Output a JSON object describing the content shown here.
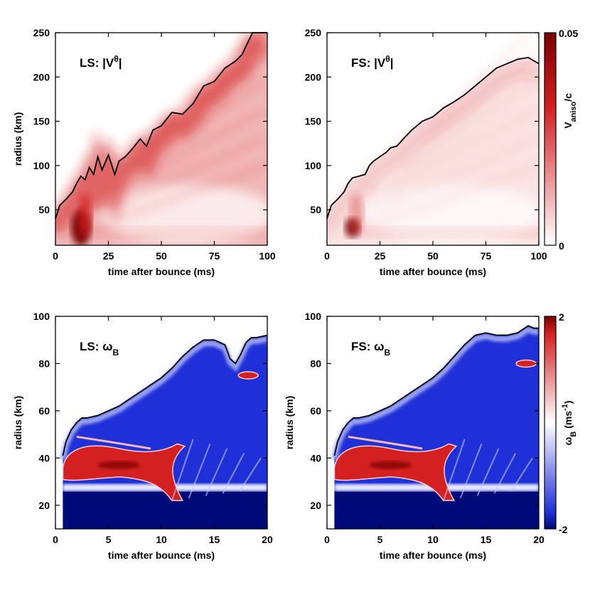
{
  "colors": {
    "red": "#d42020",
    "dark_red": "#7a0000",
    "white": "#ffffff",
    "blue": "#2030d8",
    "dark_blue": "#000a78",
    "shock_line": "#000000"
  },
  "chart_data": [
    {
      "type": "heatmap",
      "panel": "top-left",
      "title_prefix": "LS: |V",
      "title_sup": "θ",
      "title_suffix": "|",
      "xlabel": "time after bounce (ms)",
      "ylabel": "radius (km)",
      "xlim": [
        0,
        100
      ],
      "ylim": [
        10,
        250
      ],
      "xticks": [
        0,
        25,
        50,
        75,
        100
      ],
      "yticks": [
        50,
        100,
        150,
        200,
        250
      ],
      "colormap": "white-red",
      "shock_radius": {
        "x": [
          0,
          2,
          5,
          8,
          10,
          12,
          14,
          16,
          18,
          20,
          22,
          25,
          28,
          30,
          33,
          36,
          40,
          43,
          46,
          50,
          55,
          60,
          65,
          70,
          75,
          80,
          85,
          88,
          90,
          93,
          95,
          100
        ],
        "y": [
          40,
          55,
          62,
          70,
          80,
          88,
          84,
          98,
          90,
          110,
          95,
          112,
          90,
          105,
          110,
          118,
          130,
          122,
          140,
          145,
          160,
          158,
          170,
          190,
          195,
          210,
          218,
          225,
          235,
          250,
          250,
          250
        ]
      }
    },
    {
      "type": "heatmap",
      "panel": "top-right",
      "title_prefix": "FS: |V",
      "title_sup": "θ",
      "title_suffix": "|",
      "xlabel": "time after bounce (ms)",
      "ylabel": "",
      "xlim": [
        0,
        100
      ],
      "ylim": [
        10,
        250
      ],
      "xticks": [
        0,
        25,
        50,
        75,
        100
      ],
      "yticks": [
        50,
        100,
        150,
        200,
        250
      ],
      "colormap": "white-red",
      "shock_radius": {
        "x": [
          0,
          2,
          5,
          8,
          10,
          12,
          15,
          18,
          20,
          22,
          25,
          28,
          30,
          33,
          36,
          40,
          45,
          50,
          55,
          60,
          65,
          70,
          75,
          80,
          85,
          90,
          95,
          100
        ],
        "y": [
          40,
          55,
          62,
          70,
          80,
          86,
          88,
          90,
          100,
          105,
          110,
          115,
          120,
          122,
          130,
          140,
          150,
          155,
          165,
          172,
          180,
          190,
          200,
          210,
          215,
          220,
          222,
          215
        ]
      }
    },
    {
      "type": "heatmap",
      "panel": "bottom-left",
      "title_prefix": "LS: ω",
      "title_sub": "B",
      "xlabel": "time after bounce (ms)",
      "ylabel": "radius (km)",
      "xlim": [
        0,
        20
      ],
      "ylim": [
        10,
        100
      ],
      "xticks": [
        0,
        5,
        10,
        15,
        20
      ],
      "yticks": [
        20,
        40,
        60,
        80,
        100
      ],
      "colormap": "blue-white-red",
      "shock_radius": {
        "x": [
          0.7,
          1,
          1.5,
          2,
          2.5,
          3,
          4,
          5,
          6,
          7,
          8,
          9,
          10,
          11,
          12,
          13,
          14,
          15,
          16,
          16.5,
          17,
          17.5,
          18,
          18.5,
          19,
          20
        ],
        "y": [
          41,
          47,
          52,
          55,
          57,
          57,
          58,
          60,
          62,
          65,
          68,
          71,
          74,
          78,
          83,
          87,
          90,
          90,
          88,
          82,
          80,
          84,
          89,
          91,
          91,
          92
        ]
      }
    },
    {
      "type": "heatmap",
      "panel": "bottom-right",
      "title_prefix": "FS: ω",
      "title_sub": "B",
      "xlabel": "time after bounce (ms)",
      "ylabel": "radius (km)",
      "xlim": [
        0,
        20
      ],
      "ylim": [
        10,
        100
      ],
      "xticks": [
        0,
        5,
        10,
        15,
        20
      ],
      "yticks": [
        20,
        40,
        60,
        80,
        100
      ],
      "colormap": "blue-white-red",
      "shock_radius": {
        "x": [
          0.7,
          1,
          1.5,
          2,
          2.5,
          3,
          4,
          5,
          6,
          7,
          8,
          9,
          10,
          11,
          12,
          13,
          14,
          15,
          16,
          17,
          18,
          19,
          19.5,
          20
        ],
        "y": [
          41,
          47,
          52,
          55,
          57,
          57,
          58,
          60,
          62,
          65,
          68,
          71,
          74,
          78,
          83,
          88,
          92,
          93,
          92,
          92,
          93,
          96,
          95,
          95
        ]
      }
    }
  ],
  "colorbars": [
    {
      "name": "top",
      "min_label": "0",
      "max_label": "0.05",
      "label_main": "V",
      "label_sub": "aniso",
      "label_suffix": "/c"
    },
    {
      "name": "bottom",
      "min_label": "-2",
      "max_label": "2",
      "label_main": "ω",
      "label_sub": "B",
      "label_suffix": " (ms",
      "label_sup": "-1",
      "label_end": ")"
    }
  ]
}
